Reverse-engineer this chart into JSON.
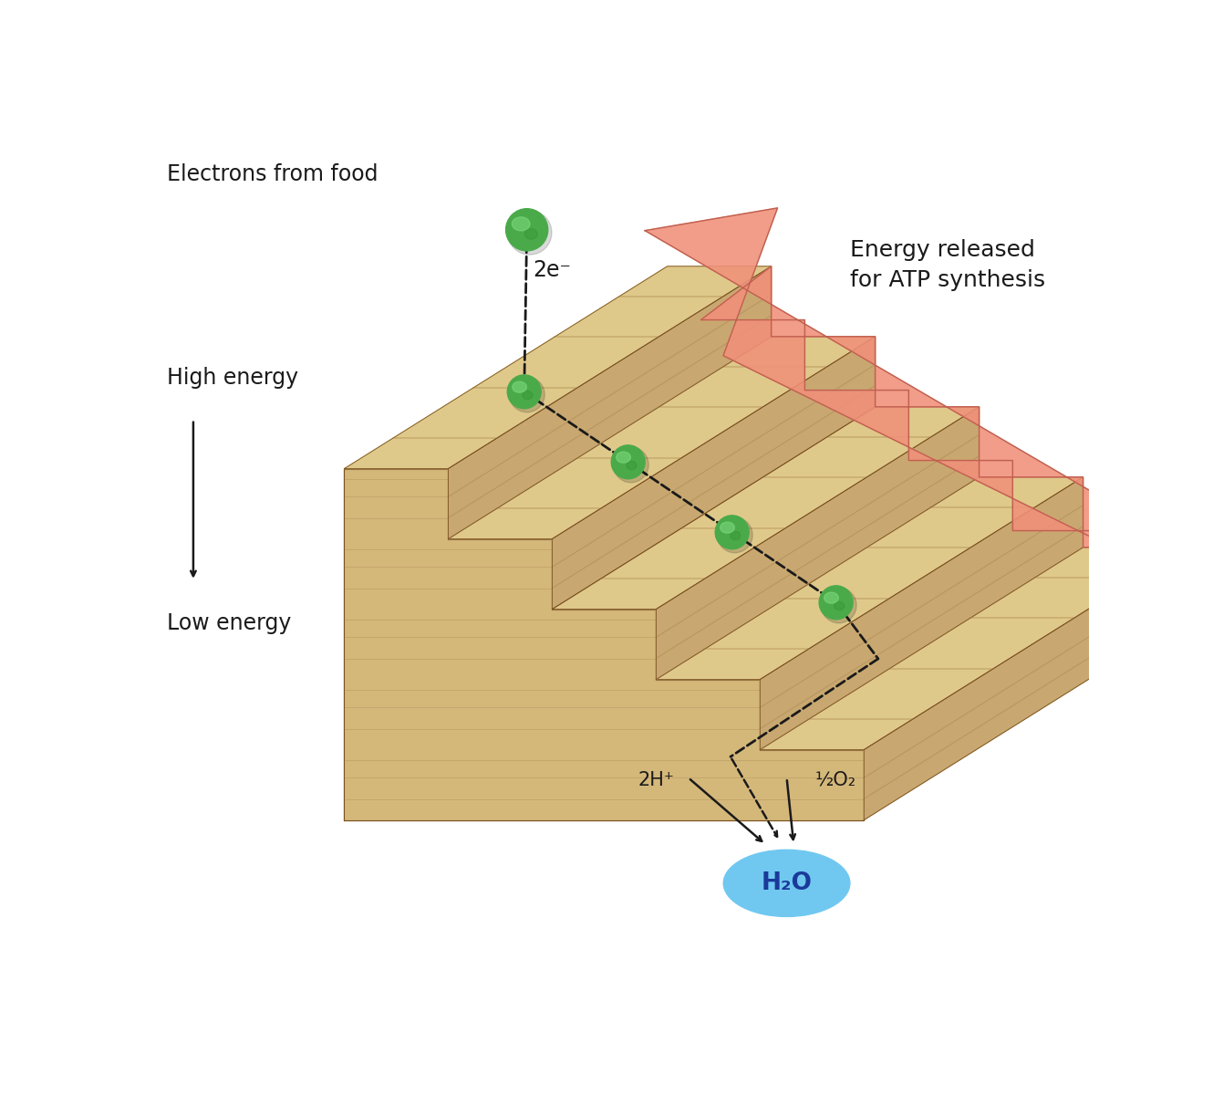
{
  "bg_color": "#ffffff",
  "n_steps": 5,
  "top_light": "#dfc98a",
  "top_mid": "#c4a96a",
  "top_dark": "#a07840",
  "front_light": "#c8a870",
  "front_dark": "#8b6030",
  "side_light": "#d4b87a",
  "side_dark": "#9a7040",
  "outline_color": "#7a5020",
  "electron_main": "#4aaa4a",
  "electron_highlight": "#80dd80",
  "electron_dark": "#208020",
  "arrow_fill": "#f0907a",
  "arrow_edge": "#c06050",
  "dashed_color": "#1a1a1a",
  "text_color": "#1a1a1a",
  "h2o_color": "#70c8f0",
  "h2o_text": "#1a3a9a",
  "label_electrons_from_food": "Electrons from food",
  "label_2e": "2e⁻",
  "label_high_energy": "High energy",
  "label_low_energy": "Low energy",
  "label_energy_released": "Energy released\nfor ATP synthesis",
  "label_2h": "2H⁺",
  "label_o2": "½O₂",
  "label_h2o": "H₂O",
  "fs_main": 17,
  "fs_small": 15
}
